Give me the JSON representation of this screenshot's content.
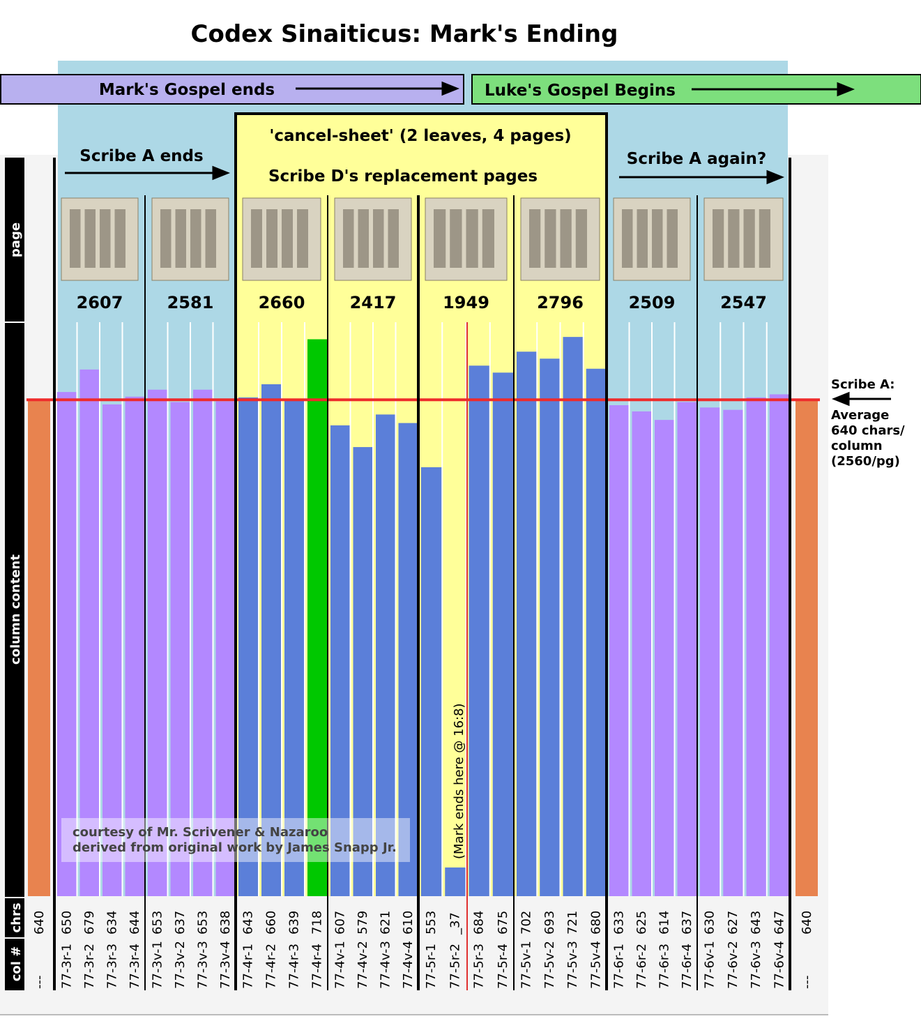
{
  "chart_data": {
    "type": "bar",
    "title": "Codex Sinaiticus: Mark's Ending",
    "banners": [
      "Mark's Gospel ends",
      "Luke's Gospel Begins"
    ],
    "section_labels": [
      "Scribe A ends",
      "'cancel-sheet' (2 leaves, 4 pages)",
      "Scribe D's replacement pages",
      "Scribe A again?"
    ],
    "row_labels": [
      "page",
      "column content",
      "chrs",
      "col #"
    ],
    "page_totals": [
      2607,
      2581,
      2660,
      2417,
      1949,
      2796,
      2509,
      2547
    ],
    "categories": [
      "77-3r-1",
      "77-3r-2",
      "77-3r-3",
      "77-3r-4",
      "77-3v-1",
      "77-3v-2",
      "77-3v-3",
      "77-3v-4",
      "77-4r-1",
      "77-4r-2",
      "77-4r-3",
      "77-4r-4",
      "77-4v-1",
      "77-4v-2",
      "77-4v-3",
      "77-4v-4",
      "77-5r-1",
      "77-5r-2",
      "77-5r-3",
      "77-5r-4",
      "77-5v-1",
      "77-5v-2",
      "77-5v-3",
      "77-5v-4",
      "77-6r-1",
      "77-6r-2",
      "77-6r-3",
      "77-6r-4",
      "77-6v-1",
      "77-6v-2",
      "77-6v-3",
      "77-6v-4"
    ],
    "values": [
      650,
      679,
      634,
      644,
      653,
      637,
      653,
      638,
      643,
      660,
      639,
      718,
      607,
      579,
      621,
      610,
      553,
      37,
      684,
      675,
      702,
      693,
      721,
      680,
      633,
      625,
      614,
      637,
      630,
      627,
      643,
      647
    ],
    "value_labels": [
      "650",
      "679",
      "634",
      "644",
      "653",
      "637",
      "653",
      "638",
      "643",
      "660",
      "639",
      "718",
      "607",
      "579",
      "621",
      "610",
      "553",
      "_37",
      "684",
      "675",
      "702",
      "693",
      "721",
      "680",
      "633",
      "625",
      "614",
      "637",
      "630",
      "627",
      "643",
      "647"
    ],
    "colors": [
      "#b388ff",
      "#b388ff",
      "#b388ff",
      "#b388ff",
      "#b388ff",
      "#b388ff",
      "#b388ff",
      "#b388ff",
      "#5b7fd9",
      "#5b7fd9",
      "#5b7fd9",
      "#00c800",
      "#5b7fd9",
      "#5b7fd9",
      "#5b7fd9",
      "#5b7fd9",
      "#5b7fd9",
      "#5b7fd9",
      "#5b7fd9",
      "#5b7fd9",
      "#5b7fd9",
      "#5b7fd9",
      "#5b7fd9",
      "#5b7fd9",
      "#b388ff",
      "#b388ff",
      "#b388ff",
      "#b388ff",
      "#b388ff",
      "#b388ff",
      "#b388ff",
      "#b388ff"
    ],
    "ylim": [
      0,
      740
    ],
    "average": {
      "value": 640,
      "label": "640",
      "col": "---",
      "color": "#e8834f",
      "line_color": "#ee2b2b"
    },
    "average_note": [
      "Scribe A:",
      "Average",
      "640 chars/",
      "column",
      "(2560/pg)"
    ],
    "mark_end_note": "(Mark ends here @ 16:8)",
    "credit": [
      "courtesy of Mr. Scrivener & Nazaroo",
      "derived from original work by James Snapp Jr."
    ]
  }
}
